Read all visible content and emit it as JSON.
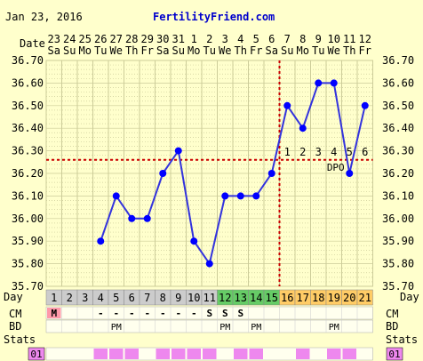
{
  "header": {
    "date": "Jan 23, 2016",
    "site": "FertilityFriend.com"
  },
  "labels": {
    "date": "Date",
    "day": "Day",
    "cm": "CM",
    "bd": "BD",
    "stats": "Stats",
    "stats_badge": "01",
    "dpo": "DPO"
  },
  "colors": {
    "background": "#ffffcc",
    "grid": "#cccc99",
    "line": "#3333dd",
    "marker": "#0000ff",
    "overlay": "#cc0000",
    "site": "#0000cc",
    "menses": "#ff99aa",
    "fertile": "#66cc66",
    "luteal": "#ffcc66",
    "row_gray": "#cccccc",
    "stats": "#ee88ee"
  },
  "chart_data": {
    "type": "line",
    "dates": [
      "23",
      "24",
      "25",
      "26",
      "27",
      "28",
      "29",
      "30",
      "31",
      "1",
      "2",
      "3",
      "4",
      "5",
      "6",
      "7",
      "8",
      "9",
      "10",
      "11",
      "12"
    ],
    "weekdays": [
      "Sa",
      "Su",
      "Mo",
      "Tu",
      "We",
      "Th",
      "Fr",
      "Sa",
      "Su",
      "Mo",
      "Tu",
      "We",
      "Th",
      "Fr",
      "Sa",
      "Su",
      "Mo",
      "Tu",
      "We",
      "Th",
      "Fr"
    ],
    "cycle_days": [
      "1",
      "2",
      "3",
      "4",
      "5",
      "6",
      "7",
      "8",
      "9",
      "10",
      "11",
      "12",
      "13",
      "14",
      "15",
      "16",
      "17",
      "18",
      "19",
      "20",
      "21"
    ],
    "temps": [
      null,
      null,
      null,
      35.9,
      36.1,
      36.0,
      36.0,
      36.2,
      36.3,
      35.9,
      35.8,
      36.1,
      36.1,
      36.1,
      36.2,
      36.5,
      36.4,
      36.6,
      36.6,
      36.2,
      36.5
    ],
    "ylim": [
      35.7,
      36.7
    ],
    "yticks": [
      "36.70",
      "36.60",
      "36.50",
      "36.40",
      "36.30",
      "36.20",
      "36.10",
      "36.00",
      "35.90",
      "35.80",
      "35.70"
    ],
    "coverline": 36.26,
    "ovulation_day": 15,
    "dpo_labels": [
      "1",
      "2",
      "3",
      "4",
      "5",
      "6"
    ],
    "day_phase": [
      "menses",
      "none",
      "none",
      "none",
      "none",
      "none",
      "none",
      "none",
      "none",
      "none",
      "none",
      "fertile",
      "fertile",
      "fertile",
      "fertile",
      "luteal",
      "luteal",
      "luteal",
      "luteal",
      "luteal",
      "luteal"
    ],
    "cm": [
      "M",
      "",
      "",
      "-",
      "-",
      "-",
      "-",
      "-",
      "-",
      "-",
      "S",
      "S",
      "S",
      "",
      "",
      "",
      "",
      "",
      "",
      "",
      ""
    ],
    "bd": [
      "",
      "",
      "",
      "",
      "PM",
      "",
      "",
      "",
      "",
      "",
      "",
      "PM",
      "",
      "PM",
      "",
      "",
      "",
      "",
      "PM",
      "",
      ""
    ],
    "stats": [
      false,
      false,
      false,
      true,
      true,
      true,
      false,
      true,
      true,
      true,
      true,
      false,
      true,
      true,
      false,
      false,
      true,
      false,
      true,
      true,
      false
    ]
  }
}
